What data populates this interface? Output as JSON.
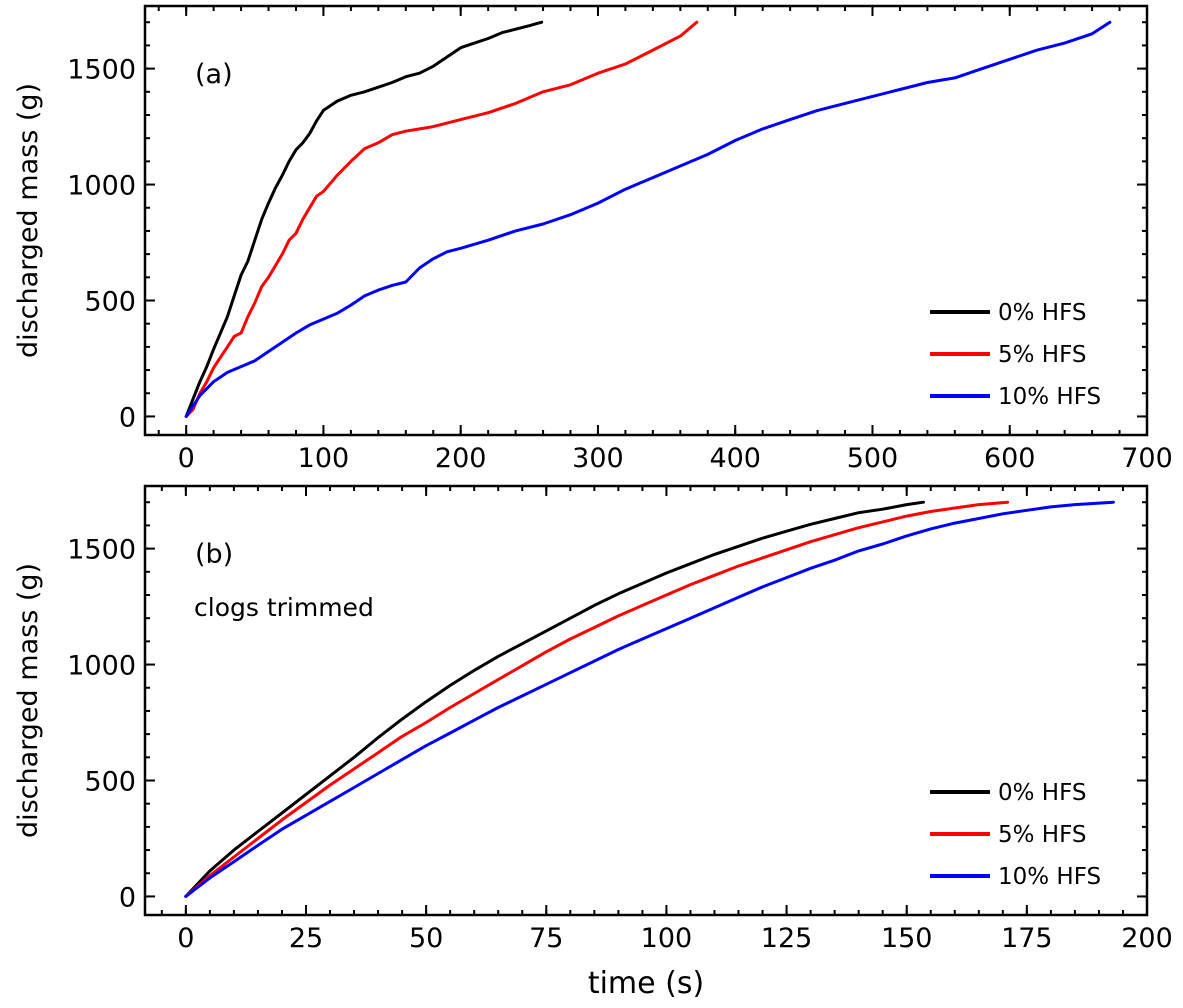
{
  "chart_data": [
    {
      "type": "line",
      "panel_label": "(a)",
      "annotation": "",
      "xlabel": "",
      "ylabel": "discharged mass (g)",
      "xlim": [
        -30,
        700
      ],
      "ylim": [
        -80,
        1770
      ],
      "xticks": [
        0,
        100,
        200,
        300,
        400,
        500,
        600,
        700
      ],
      "yticks": [
        0,
        500,
        1000,
        1500
      ],
      "x_minor_step": 20,
      "y_minor_step": 100,
      "legend_position": "bottom-right",
      "series": [
        {
          "name": "0% HFS",
          "color": "#000000",
          "x": [
            0,
            5,
            10,
            15,
            20,
            25,
            30,
            35,
            40,
            45,
            50,
            55,
            60,
            65,
            70,
            75,
            80,
            85,
            90,
            95,
            100,
            110,
            120,
            130,
            140,
            150,
            160,
            170,
            180,
            190,
            200,
            210,
            220,
            230,
            240,
            250,
            259
          ],
          "y": [
            0,
            75,
            150,
            215,
            290,
            360,
            430,
            520,
            610,
            670,
            760,
            850,
            920,
            985,
            1040,
            1100,
            1150,
            1180,
            1220,
            1275,
            1320,
            1360,
            1385,
            1400,
            1420,
            1440,
            1465,
            1480,
            1510,
            1550,
            1590,
            1610,
            1630,
            1655,
            1670,
            1685,
            1700
          ]
        },
        {
          "name": "5% HFS",
          "color": "#ff0000",
          "x": [
            0,
            5,
            10,
            15,
            20,
            25,
            30,
            35,
            40,
            45,
            50,
            55,
            60,
            65,
            70,
            75,
            80,
            85,
            90,
            95,
            100,
            110,
            120,
            130,
            140,
            150,
            160,
            180,
            200,
            220,
            240,
            260,
            280,
            300,
            320,
            340,
            360,
            372
          ],
          "y": [
            0,
            30,
            100,
            150,
            210,
            255,
            300,
            345,
            360,
            430,
            490,
            560,
            600,
            650,
            700,
            760,
            790,
            850,
            900,
            950,
            970,
            1040,
            1100,
            1155,
            1180,
            1215,
            1230,
            1250,
            1280,
            1310,
            1350,
            1400,
            1430,
            1480,
            1520,
            1580,
            1640,
            1700
          ]
        },
        {
          "name": "10% HFS",
          "color": "#0000ff",
          "x": [
            0,
            10,
            20,
            30,
            40,
            50,
            60,
            70,
            80,
            90,
            100,
            110,
            120,
            130,
            140,
            150,
            160,
            170,
            180,
            190,
            200,
            220,
            240,
            260,
            280,
            300,
            320,
            340,
            360,
            380,
            400,
            420,
            440,
            460,
            480,
            500,
            520,
            540,
            560,
            580,
            600,
            620,
            640,
            660,
            673
          ],
          "y": [
            0,
            90,
            150,
            190,
            215,
            240,
            280,
            320,
            360,
            395,
            420,
            445,
            480,
            520,
            545,
            565,
            580,
            640,
            680,
            710,
            725,
            760,
            800,
            830,
            870,
            920,
            980,
            1030,
            1080,
            1130,
            1190,
            1240,
            1280,
            1320,
            1350,
            1380,
            1410,
            1440,
            1460,
            1500,
            1540,
            1580,
            1610,
            1650,
            1700
          ]
        }
      ]
    },
    {
      "type": "line",
      "panel_label": "(b)",
      "annotation": "clogs trimmed",
      "xlabel": "time (s)",
      "ylabel": "discharged mass (g)",
      "xlim": [
        -8.5,
        200
      ],
      "ylim": [
        -80,
        1770
      ],
      "xticks": [
        0,
        25,
        50,
        75,
        100,
        125,
        150,
        175,
        200
      ],
      "yticks": [
        0,
        500,
        1000,
        1500
      ],
      "x_minor_step": 5,
      "y_minor_step": 100,
      "legend_position": "bottom-right",
      "series": [
        {
          "name": "0% HFS",
          "color": "#000000",
          "x": [
            0,
            5,
            10,
            15,
            20,
            25,
            30,
            35,
            40,
            45,
            50,
            55,
            60,
            65,
            70,
            75,
            80,
            85,
            90,
            95,
            100,
            105,
            110,
            115,
            120,
            125,
            130,
            135,
            140,
            145,
            150,
            153.5
          ],
          "y": [
            0,
            110,
            200,
            280,
            360,
            440,
            520,
            600,
            685,
            765,
            840,
            910,
            975,
            1035,
            1090,
            1145,
            1200,
            1255,
            1305,
            1350,
            1395,
            1435,
            1475,
            1510,
            1545,
            1575,
            1605,
            1630,
            1655,
            1670,
            1690,
            1700
          ]
        },
        {
          "name": "5% HFS",
          "color": "#ff0000",
          "x": [
            0,
            5,
            10,
            15,
            20,
            25,
            30,
            35,
            40,
            45,
            50,
            55,
            60,
            65,
            70,
            75,
            80,
            85,
            90,
            95,
            100,
            105,
            110,
            115,
            120,
            125,
            130,
            135,
            140,
            145,
            150,
            155,
            160,
            165,
            171
          ],
          "y": [
            0,
            90,
            170,
            250,
            330,
            405,
            480,
            550,
            620,
            690,
            750,
            815,
            875,
            935,
            995,
            1055,
            1110,
            1160,
            1210,
            1255,
            1300,
            1345,
            1385,
            1425,
            1460,
            1495,
            1530,
            1560,
            1590,
            1615,
            1640,
            1660,
            1675,
            1690,
            1700
          ]
        },
        {
          "name": "10% HFS",
          "color": "#0000ff",
          "x": [
            0,
            5,
            10,
            15,
            20,
            25,
            30,
            35,
            40,
            45,
            50,
            55,
            60,
            65,
            70,
            75,
            80,
            85,
            90,
            95,
            100,
            105,
            110,
            115,
            120,
            125,
            130,
            135,
            140,
            145,
            150,
            155,
            160,
            165,
            170,
            175,
            180,
            185,
            193
          ],
          "y": [
            0,
            80,
            150,
            220,
            290,
            350,
            410,
            470,
            530,
            590,
            650,
            705,
            760,
            815,
            865,
            915,
            965,
            1015,
            1065,
            1110,
            1155,
            1200,
            1245,
            1290,
            1335,
            1375,
            1415,
            1450,
            1490,
            1520,
            1555,
            1585,
            1610,
            1630,
            1650,
            1665,
            1680,
            1690,
            1700
          ]
        }
      ]
    }
  ]
}
